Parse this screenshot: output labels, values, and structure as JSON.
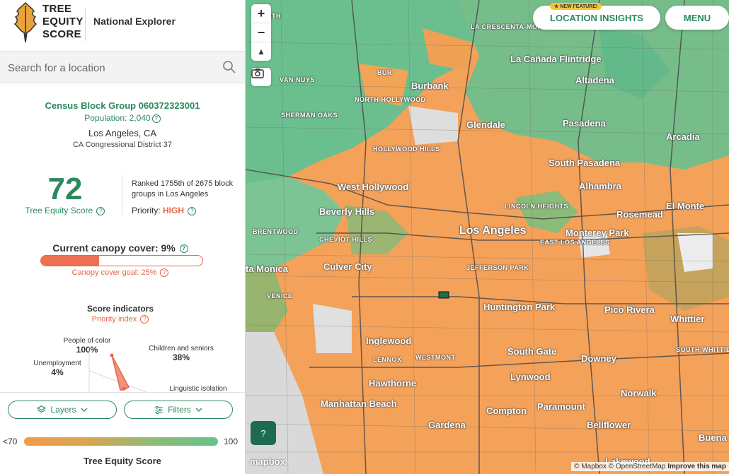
{
  "header": {
    "brand_line1": "TREE",
    "brand_line2": "EQUITY",
    "brand_line3": "SCORE",
    "app_title": "National Explorer"
  },
  "search": {
    "placeholder": "Search for a location"
  },
  "block": {
    "title": "Census Block Group 060372323001",
    "population": "Population: 2,040",
    "city": "Los Angeles, CA",
    "district": "CA Congressional District 37"
  },
  "score": {
    "value": "72",
    "label": "Tree Equity Score",
    "rank": "Ranked 1755th of 2675 block groups in Los Angeles",
    "priority_label": "Priority:",
    "priority_value": "HIGH"
  },
  "canopy": {
    "title": "Current canopy cover: 9%",
    "current": 0.09,
    "goal": 0.25,
    "goal_label": "Canopy cover goal: 25%"
  },
  "indicators": {
    "title": "Score indicators",
    "subtitle": "Priority index",
    "items": [
      {
        "label": "People of color",
        "value": "100%"
      },
      {
        "label": "Children and seniors",
        "value": "38%"
      },
      {
        "label": "Unemployment",
        "value": "4%"
      },
      {
        "label": "Linguistic isolation",
        "value": ""
      }
    ]
  },
  "controls": {
    "layers": "Layers",
    "filters": "Filters"
  },
  "legend": {
    "min": "<70",
    "max": "100",
    "title": "Tree Equity Score"
  },
  "map": {
    "zoom_in": "+",
    "zoom_out": "−",
    "compass": "▲",
    "location_insights": "LOCATION INSIGHTS",
    "new_feature": "★ NEW FEATURE!",
    "menu": "MENU",
    "help": "?",
    "mapbox": "mapbox",
    "attribution": "© Mapbox © OpenStreetMap",
    "improve": "Improve this map",
    "places": [
      {
        "name": "Burbank",
        "size": "normal"
      },
      {
        "name": "Glendale",
        "size": "normal"
      },
      {
        "name": "Pasadena",
        "size": "normal"
      },
      {
        "name": "La Cañada Flintridge",
        "size": "normal"
      },
      {
        "name": "Altadena",
        "size": "normal"
      },
      {
        "name": "Arcadia",
        "size": "normal"
      },
      {
        "name": "South Pasadena",
        "size": "normal"
      },
      {
        "name": "Alhambra",
        "size": "normal"
      },
      {
        "name": "West Hollywood",
        "size": "normal"
      },
      {
        "name": "Beverly Hills",
        "size": "normal"
      },
      {
        "name": "Los Angeles",
        "size": "big"
      },
      {
        "name": "Monterey Park",
        "size": "normal"
      },
      {
        "name": "Rosemead",
        "size": "normal"
      },
      {
        "name": "El Monte",
        "size": "normal"
      },
      {
        "name": "Culver City",
        "size": "normal"
      },
      {
        "name": "ta Monica",
        "size": "normal"
      },
      {
        "name": "Huntington Park",
        "size": "normal"
      },
      {
        "name": "Pico Rivera",
        "size": "normal"
      },
      {
        "name": "Whittier",
        "size": "normal"
      },
      {
        "name": "Inglewood",
        "size": "normal"
      },
      {
        "name": "South Gate",
        "size": "normal"
      },
      {
        "name": "Downey",
        "size": "normal"
      },
      {
        "name": "Lynwood",
        "size": "normal"
      },
      {
        "name": "Hawthorne",
        "size": "normal"
      },
      {
        "name": "Norwalk",
        "size": "normal"
      },
      {
        "name": "Manhattan Beach",
        "size": "normal"
      },
      {
        "name": "Compton",
        "size": "normal"
      },
      {
        "name": "Paramount",
        "size": "normal"
      },
      {
        "name": "Gardena",
        "size": "normal"
      },
      {
        "name": "Bellflower",
        "size": "normal"
      },
      {
        "name": "Buena",
        "size": "normal"
      },
      {
        "name": "Lakewood",
        "size": "normal"
      },
      {
        "name": "VAN NUYS",
        "size": "small"
      },
      {
        "name": "NORTH HOLLYWOOD",
        "size": "small"
      },
      {
        "name": "SHERMAN OAKS",
        "size": "small"
      },
      {
        "name": "HOLLYWOOD HILLS",
        "size": "small"
      },
      {
        "name": "LA CRESCENTA-MONTROSE",
        "size": "small"
      },
      {
        "name": "BUR",
        "size": "small"
      },
      {
        "name": "BRENTWOOD",
        "size": "small"
      },
      {
        "name": "CHEVIOT HILLS",
        "size": "small"
      },
      {
        "name": "LINCOLN HEIGHTS",
        "size": "small"
      },
      {
        "name": "EAST LOS ANGELES",
        "size": "small"
      },
      {
        "name": "JEFFERSON PARK",
        "size": "small"
      },
      {
        "name": "VENICE",
        "size": "small"
      },
      {
        "name": "LENNOX",
        "size": "small"
      },
      {
        "name": "WESTMONT",
        "size": "small"
      },
      {
        "name": "SOUTH WHITTIER",
        "size": "small"
      },
      {
        "name": "RTH",
        "size": "small"
      }
    ]
  }
}
